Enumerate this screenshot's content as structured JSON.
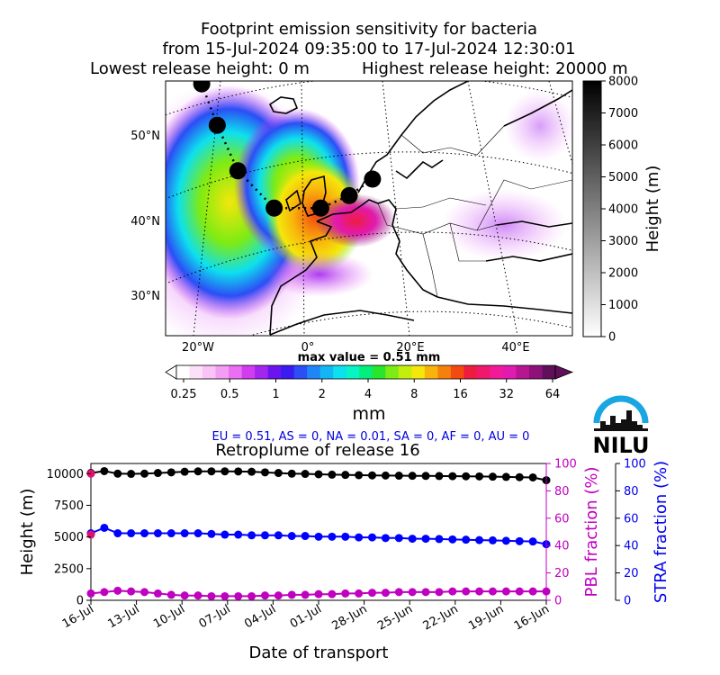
{
  "header": {
    "title_line1": "Footprint emission sensitivity for bacteria",
    "title_line2": "from 15-Jul-2024 09:35:00 to 17-Jul-2024 12:30:01",
    "release_low": "Lowest release height: 0 m",
    "release_high": "Highest release height: 20000 m"
  },
  "map": {
    "lat_labels": [
      "50°N",
      "40°N",
      "30°N"
    ],
    "lon_labels": [
      "20°W",
      "0°",
      "20°E",
      "40°E"
    ],
    "max_value_text": "max value = 0.51 mm",
    "track_points": [
      {
        "lon": -20.5,
        "lat": 56.5
      },
      {
        "lon": -17.5,
        "lat": 51.5
      },
      {
        "lon": -13.5,
        "lat": 46.0
      },
      {
        "lon": -6.5,
        "lat": 41.5
      },
      {
        "lon": 2.5,
        "lat": 41.5
      },
      {
        "lon": 8.0,
        "lat": 43.0
      },
      {
        "lon": 12.5,
        "lat": 45.0
      }
    ]
  },
  "height_colorbar": {
    "label": "Height (m)",
    "ticks": [
      "0",
      "1000",
      "2000",
      "3000",
      "4000",
      "5000",
      "6000",
      "7000",
      "8000"
    ],
    "range": [
      0,
      8000
    ]
  },
  "sensitivity_colorbar": {
    "unit": "mm",
    "ticks": [
      "0.25",
      "0.5",
      "1",
      "2",
      "4",
      "8",
      "16",
      "32",
      "64"
    ],
    "colors": [
      "#ffffff",
      "#fde0f8",
      "#f9c3f5",
      "#f29ef3",
      "#ea6ff2",
      "#d13cf0",
      "#a326f0",
      "#6c14f0",
      "#3b1bf2",
      "#2b4ef5",
      "#1e86f6",
      "#12b6f4",
      "#0de0ee",
      "#06f5c3",
      "#04ee7d",
      "#27e62c",
      "#7deb14",
      "#c2f00c",
      "#f3e70b",
      "#f8b40c",
      "#f7800c",
      "#f24a10",
      "#ee1c3f",
      "#f0186d",
      "#f31a9a",
      "#e21ab0",
      "#b81690",
      "#90107a",
      "#600f5a"
    ]
  },
  "logo": {
    "text": "NILU",
    "color": "#1aa6e2"
  },
  "region_fractions": "EU = 0.51,  AS = 0,  NA = 0.01,  SA = 0,  AF = 0,  AU = 0",
  "chart_data": {
    "type": "line",
    "title": "Retroplume of release 16",
    "xlabel": "Date of transport",
    "x_tick_labels": [
      "16-Jul",
      "13-Jul",
      "10-Jul",
      "07-Jul",
      "04-Jul",
      "01-Jul",
      "28-Jun",
      "25-Jun",
      "22-Jun",
      "19-Jun",
      "16-Jun"
    ],
    "x": [
      0,
      1,
      2,
      3,
      4,
      5,
      6,
      7,
      8,
      9,
      10,
      11,
      12,
      13,
      14,
      15,
      16,
      17,
      18,
      19,
      20,
      21,
      22,
      23,
      24,
      25,
      26,
      27,
      28,
      29,
      30,
      31,
      32,
      33,
      34
    ],
    "y_left_label": "Height (m)",
    "y_left_ticks": [
      "0",
      "2500",
      "5000",
      "7500",
      "10000"
    ],
    "y_left_range": [
      0,
      10800
    ],
    "y_pbl_label": "PBL fraction (%)",
    "y_pbl_ticks": [
      "0",
      "20",
      "40",
      "60",
      "80",
      "100"
    ],
    "y_stra_label": "STRA fraction (%)",
    "y_stra_ticks": [
      "0",
      "20",
      "40",
      "60",
      "80",
      "100"
    ],
    "y_fraction_range": [
      0,
      100
    ],
    "series": [
      {
        "color": "#000000",
        "axis": "height",
        "values": [
          10050,
          10200,
          10000,
          9980,
          10000,
          10050,
          10100,
          10150,
          10180,
          10180,
          10180,
          10170,
          10150,
          10100,
          10050,
          10000,
          9980,
          9950,
          9920,
          9900,
          9880,
          9860,
          9850,
          9840,
          9830,
          9820,
          9810,
          9800,
          9790,
          9780,
          9760,
          9740,
          9720,
          9700,
          9480
        ]
      },
      {
        "color": "#0000ff",
        "axis": "stra",
        "values": [
          49,
          53,
          49,
          49,
          49,
          49,
          49,
          49,
          49,
          48.5,
          48,
          48,
          47.5,
          47.5,
          47.5,
          47,
          47,
          46.5,
          46.5,
          46.5,
          46,
          46,
          45.5,
          45.5,
          45,
          45,
          44.8,
          44.5,
          44.3,
          44,
          43.8,
          43.5,
          43.2,
          43,
          41
        ]
      },
      {
        "color": "#c000c0",
        "axis": "pbl",
        "values": [
          5,
          6,
          7,
          6.5,
          6,
          5,
          4,
          3.5,
          3.5,
          3,
          3,
          3,
          3,
          3.5,
          3.5,
          4,
          4,
          4.5,
          4.5,
          5,
          5,
          5.5,
          5.5,
          6,
          6,
          6,
          6,
          6.5,
          6.5,
          6.5,
          6.5,
          6.5,
          6.5,
          6.5,
          6.5
        ]
      }
    ],
    "first_markers": [
      {
        "color": "#e0106e",
        "axis": "height",
        "value": 10000
      },
      {
        "color": "#e0106e",
        "axis": "stra",
        "value": 48
      }
    ]
  }
}
